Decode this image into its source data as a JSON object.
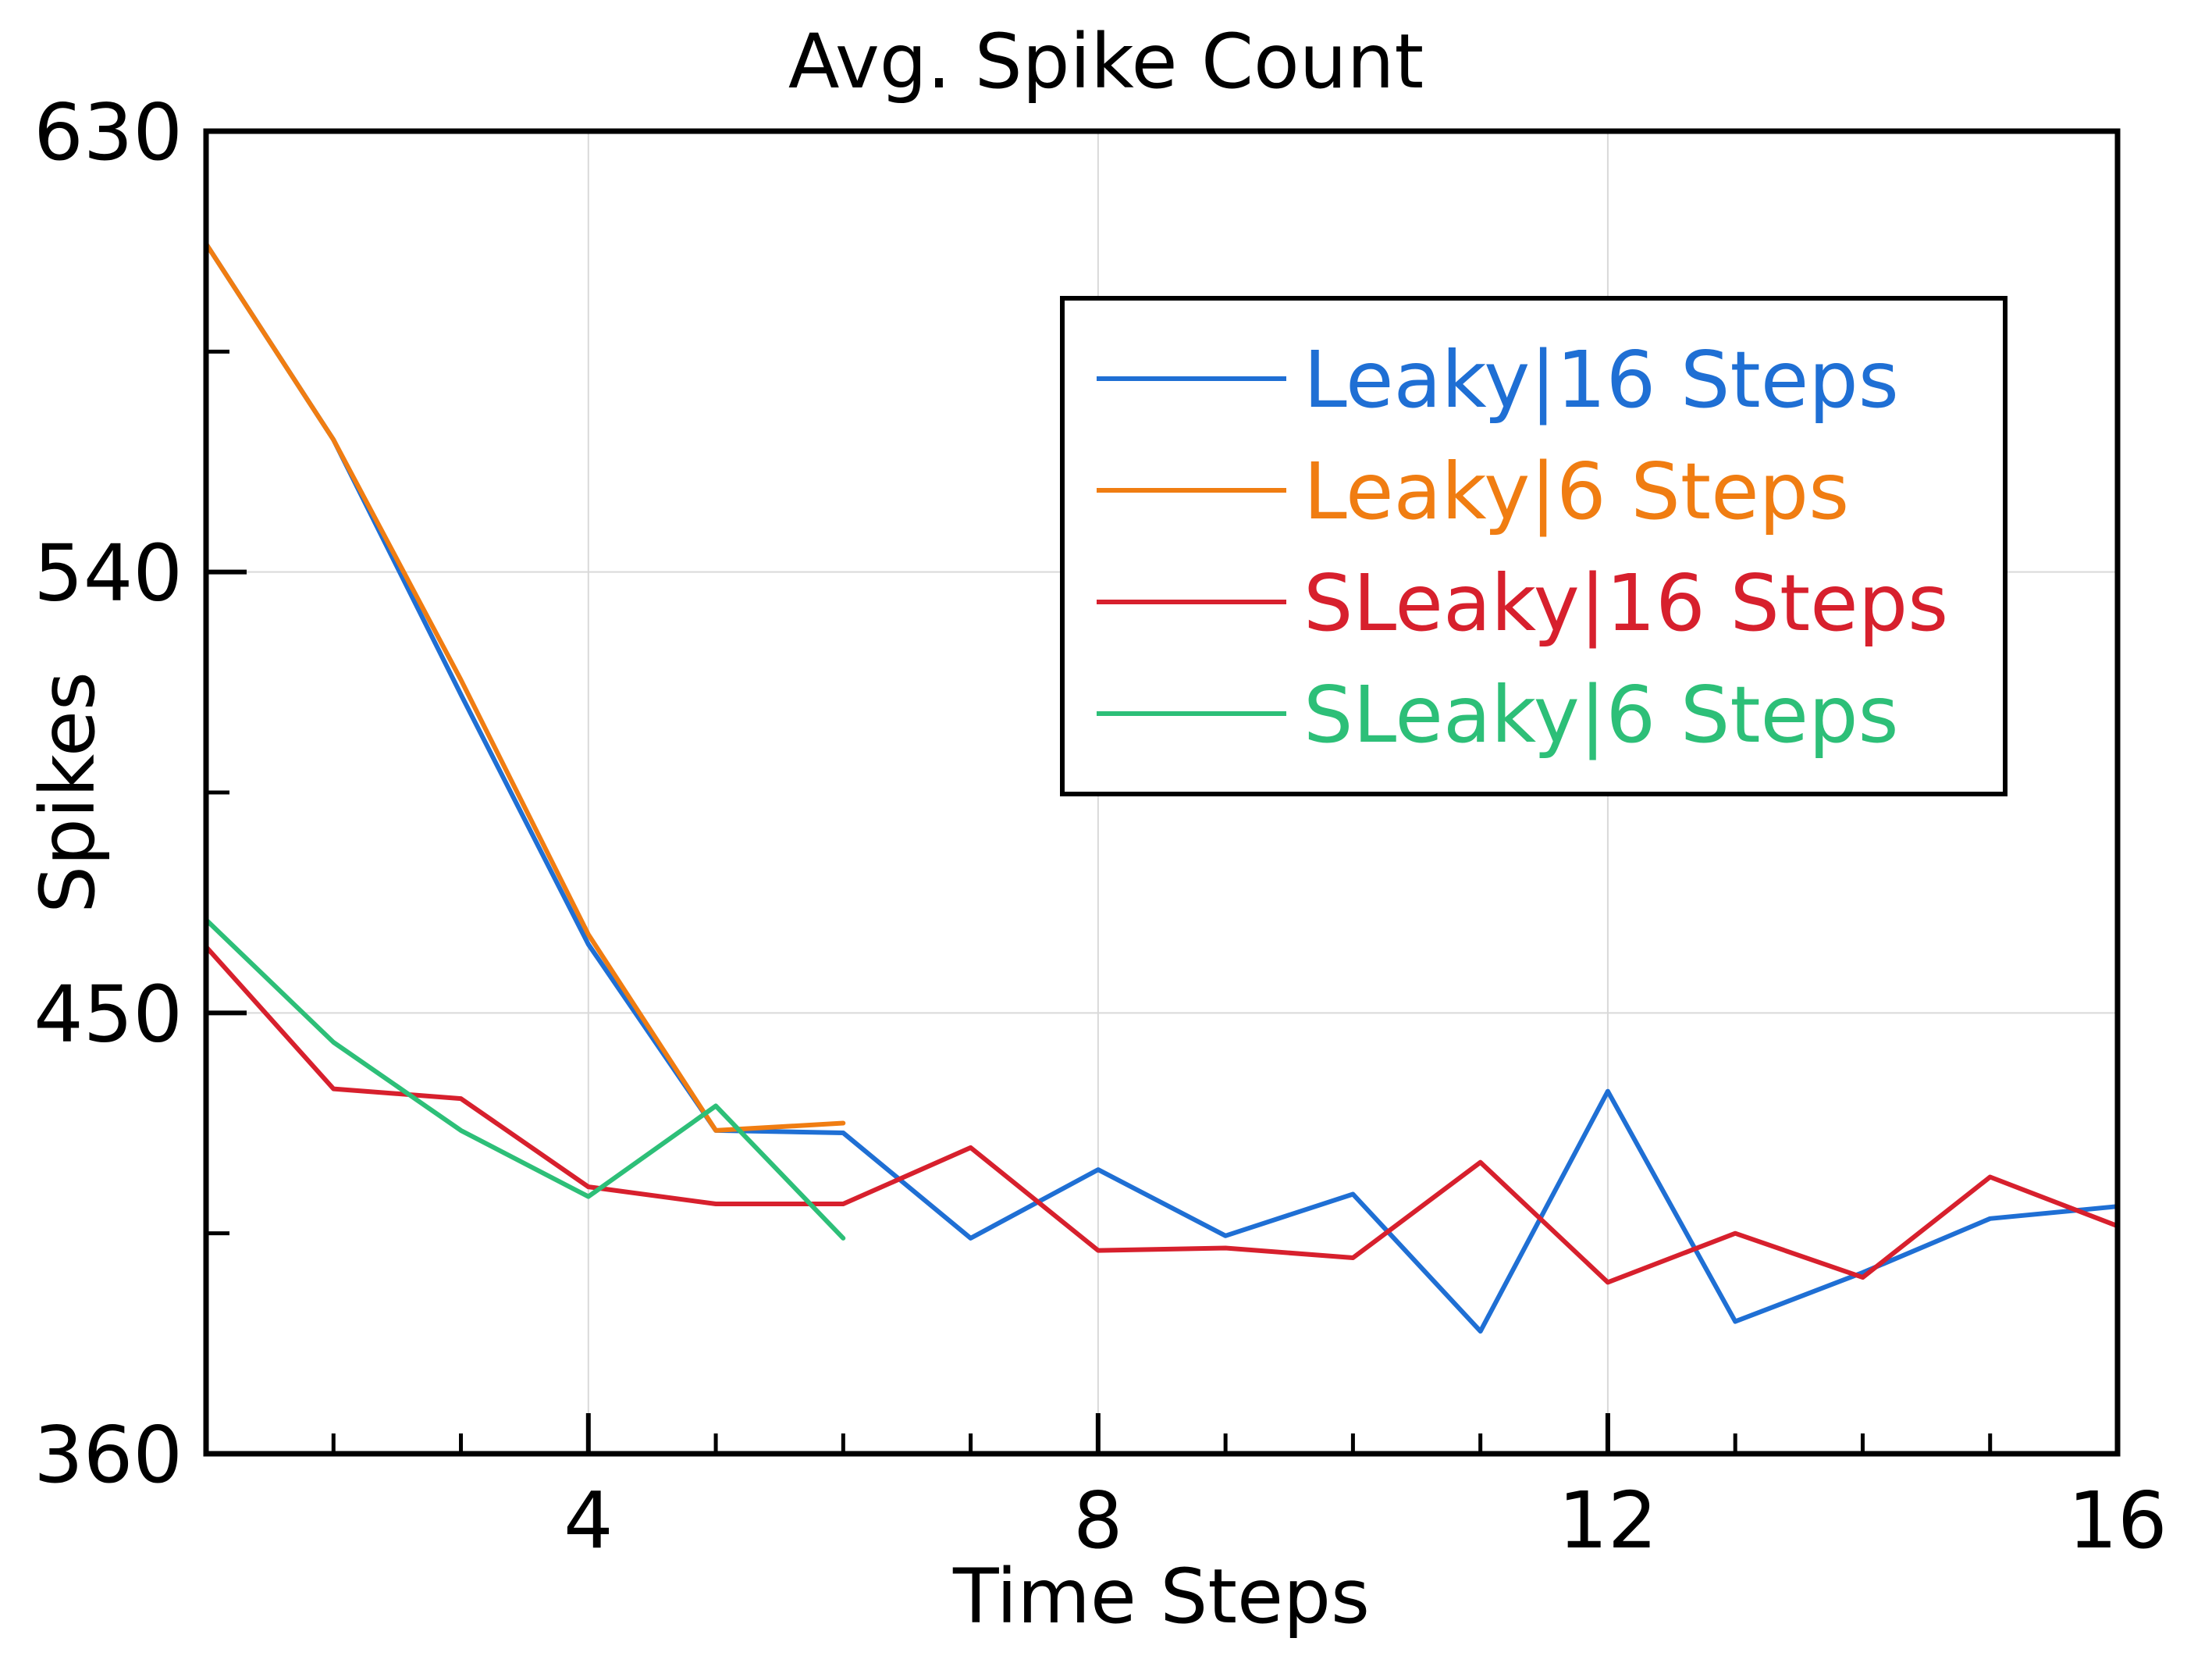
{
  "chart_data": {
    "type": "line",
    "title": "Avg. Spike Count",
    "xlabel": "Time Steps",
    "ylabel": "Spikes",
    "xlim": [
      1,
      16
    ],
    "ylim": [
      360,
      630
    ],
    "xticks": [
      4,
      8,
      12,
      16
    ],
    "yticks": [
      360,
      450,
      540,
      630
    ],
    "x_minor_ticks": [
      2,
      3,
      5,
      6,
      7,
      9,
      10,
      11,
      13,
      14,
      15
    ],
    "y_minor_ticks": [
      405,
      495,
      585
    ],
    "grid": true,
    "legend_position": "top-right",
    "series": [
      {
        "name": "Leaky|16 Steps",
        "color": "#1f6fd4",
        "x": [
          1,
          2,
          3,
          4,
          5,
          6,
          7,
          8,
          9,
          10,
          11,
          12,
          13,
          14,
          15,
          16
        ],
        "y": [
          607,
          567,
          515,
          464,
          426,
          425.5,
          404,
          418,
          404.5,
          413,
          385,
          434,
          387,
          397,
          408,
          410.5
        ]
      },
      {
        "name": "Leaky|6 Steps",
        "color": "#f07d12",
        "x": [
          1,
          2,
          3,
          4,
          5,
          6
        ],
        "y": [
          607,
          567,
          518,
          466,
          426,
          427.5
        ]
      },
      {
        "name": "SLeaky|16 Steps",
        "color": "#d7202d",
        "x": [
          1,
          2,
          3,
          4,
          5,
          6,
          7,
          8,
          9,
          10,
          11,
          12,
          13,
          14,
          15,
          16
        ],
        "y": [
          463.5,
          434.5,
          432.5,
          414.5,
          411,
          411,
          422.5,
          401.5,
          402,
          400,
          419.5,
          395,
          405,
          396,
          416.5,
          406.5
        ]
      },
      {
        "name": "SLeaky|6 Steps",
        "color": "#2dbf78",
        "x": [
          1,
          2,
          3,
          4,
          5,
          6
        ],
        "y": [
          469,
          444,
          426,
          412.5,
          431,
          404
        ]
      }
    ]
  }
}
